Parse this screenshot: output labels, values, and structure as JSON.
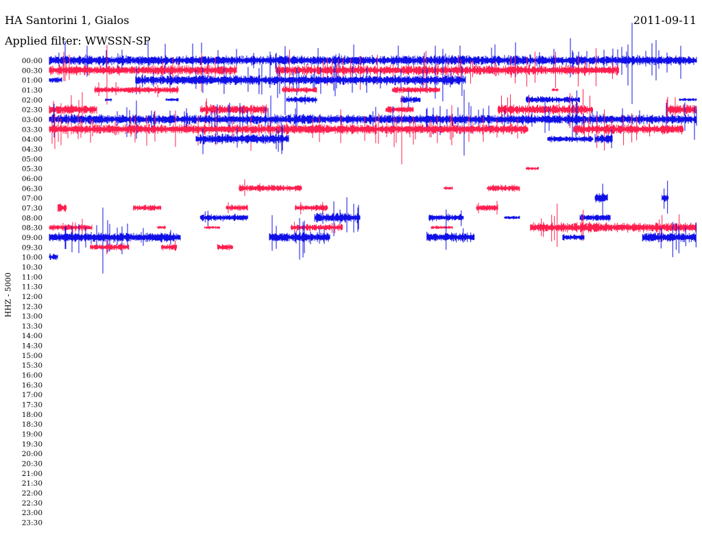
{
  "header": {
    "station": "HA Santorini 1, Gialos",
    "date": "2011-09-11",
    "filter_label": "Applied filter: WWSSN-SP"
  },
  "chart_data": {
    "type": "line",
    "title": "HA Santorini 1, Gialos",
    "subtitle": "Applied filter: WWSSN-SP",
    "date": "2011-09-11",
    "ylabel": "HHZ - 5000",
    "xlabel": "",
    "minutes_per_line": 30,
    "x_range_minutes": [
      0,
      30
    ],
    "tick_labels": [
      "00:00",
      "00:30",
      "01:00",
      "01:30",
      "02:00",
      "02:30",
      "03:00",
      "03:30",
      "04:00",
      "04:30",
      "05:00",
      "05:30",
      "06:00",
      "06:30",
      "07:00",
      "07:30",
      "08:00",
      "08:30",
      "09:00",
      "09:30",
      "10:00",
      "10:30",
      "11:00",
      "11:30",
      "12:00",
      "12:30",
      "13:00",
      "13:30",
      "14:00",
      "14:30",
      "15:00",
      "15:30",
      "16:00",
      "16:30",
      "17:00",
      "17:30",
      "18:00",
      "18:30",
      "19:00",
      "19:30",
      "20:00",
      "20:30",
      "21:00",
      "21:30",
      "22:00",
      "22:30",
      "23:00",
      "23:30"
    ],
    "line_colors": [
      "#1010e6",
      "#ff1f4f"
    ],
    "grid": false,
    "legend": "none",
    "traces": [
      {
        "row": 0,
        "segments": [
          [
            0,
            30,
            "high"
          ]
        ]
      },
      {
        "row": 1,
        "segments": [
          [
            0,
            8.7,
            "high"
          ],
          [
            10.5,
            26.4,
            "high"
          ]
        ]
      },
      {
        "row": 2,
        "segments": [
          [
            0,
            0.6,
            "med"
          ],
          [
            4,
            19.3,
            "high"
          ]
        ]
      },
      {
        "row": 3,
        "segments": [
          [
            2.1,
            6,
            "med"
          ],
          [
            10.8,
            12.4,
            "med"
          ],
          [
            15.9,
            18.1,
            "med"
          ],
          [
            23.3,
            23.6,
            "low"
          ]
        ]
      },
      {
        "row": 4,
        "segments": [
          [
            2.6,
            2.9,
            "low"
          ],
          [
            5.4,
            6,
            "low"
          ],
          [
            11,
            12.4,
            "med"
          ],
          [
            16.3,
            17.2,
            "med"
          ],
          [
            22.1,
            24.6,
            "med"
          ],
          [
            29.2,
            30,
            "low"
          ]
        ]
      },
      {
        "row": 5,
        "segments": [
          [
            0,
            2.2,
            "high"
          ],
          [
            7,
            10.1,
            "high"
          ],
          [
            15.6,
            16.9,
            "med"
          ],
          [
            20.8,
            25.2,
            "high"
          ],
          [
            28.6,
            30,
            "high"
          ]
        ]
      },
      {
        "row": 6,
        "segments": [
          [
            0,
            30,
            "high"
          ]
        ]
      },
      {
        "row": 7,
        "segments": [
          [
            0,
            22.2,
            "high"
          ],
          [
            24.3,
            29.4,
            "high"
          ]
        ]
      },
      {
        "row": 8,
        "segments": [
          [
            6.8,
            11.1,
            "high"
          ],
          [
            23.1,
            25.2,
            "med"
          ],
          [
            25.3,
            26.1,
            "high"
          ]
        ]
      },
      {
        "row": 11,
        "segments": [
          [
            22.1,
            22.7,
            "low"
          ]
        ]
      },
      {
        "row": 13,
        "segments": [
          [
            8.8,
            11.7,
            "med"
          ],
          [
            18.3,
            18.7,
            "low"
          ],
          [
            20.3,
            21.8,
            "med"
          ]
        ]
      },
      {
        "row": 14,
        "segments": [
          [
            25.3,
            25.9,
            "high"
          ],
          [
            28.4,
            28.7,
            "high"
          ]
        ]
      },
      {
        "row": 15,
        "segments": [
          [
            0.4,
            0.8,
            "high"
          ],
          [
            3.9,
            5.2,
            "med"
          ],
          [
            8.2,
            9.2,
            "med"
          ],
          [
            11.4,
            12.9,
            "med"
          ],
          [
            19.8,
            20.8,
            "med"
          ]
        ]
      },
      {
        "row": 16,
        "segments": [
          [
            7,
            9.2,
            "med"
          ],
          [
            12.3,
            14.4,
            "high"
          ],
          [
            17.6,
            19.2,
            "med"
          ],
          [
            21.1,
            21.8,
            "low"
          ],
          [
            24.6,
            26,
            "med"
          ]
        ]
      },
      {
        "row": 17,
        "segments": [
          [
            0,
            2,
            "med"
          ],
          [
            5,
            5.4,
            "low"
          ],
          [
            7.2,
            7.9,
            "low"
          ],
          [
            11.2,
            13.6,
            "med"
          ],
          [
            17.7,
            18.7,
            "low"
          ],
          [
            22.3,
            30,
            "high"
          ]
        ]
      },
      {
        "row": 18,
        "segments": [
          [
            0,
            6.1,
            "high"
          ],
          [
            10.2,
            13,
            "high"
          ],
          [
            17.5,
            19.7,
            "high"
          ],
          [
            23.8,
            24.8,
            "med"
          ],
          [
            27.5,
            30,
            "high"
          ]
        ]
      },
      {
        "row": 19,
        "segments": [
          [
            1.9,
            3.7,
            "med"
          ],
          [
            5.2,
            5.9,
            "med"
          ],
          [
            7.8,
            8.5,
            "med"
          ]
        ]
      },
      {
        "row": 20,
        "segments": [
          [
            0,
            0.4,
            "med"
          ]
        ]
      }
    ]
  }
}
